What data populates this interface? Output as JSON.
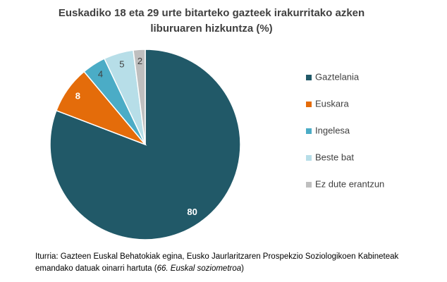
{
  "chart_data": {
    "type": "pie",
    "title": "Euskadiko  18 eta 29 urte bitarteko gazteek irakurritako azken liburuaren hizkuntza (%)",
    "categories": [
      "Gaztelania",
      "Euskara",
      "Ingelesa",
      "Beste bat",
      "Ez dute erantzun"
    ],
    "values": [
      80,
      8,
      4,
      5,
      2
    ],
    "colors": [
      "#215968",
      "#e46c0a",
      "#4bacc6",
      "#b7dee8",
      "#bfbfbf"
    ],
    "label_colors": [
      "#ffffff",
      "#ffffff",
      "#404040",
      "#404040",
      "#404040"
    ],
    "legend": "right"
  },
  "source": {
    "text": "Iturria: Gazteen Euskal Behatokiak egina, Eusko Jaurlaritzaren Prospekzio Soziologikoen Kabineteak emandako datuak oinarri hartuta  (",
    "italic": "66. Euskal soziometroa",
    "end": ")"
  }
}
